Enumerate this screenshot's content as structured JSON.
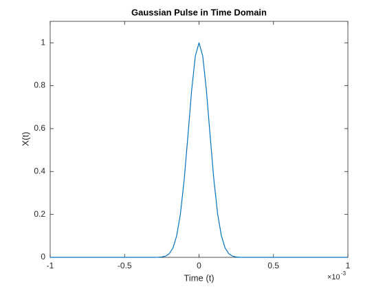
{
  "chart_data": {
    "type": "line",
    "title": "Gaussian Pulse in Time Domain",
    "xlabel": "Time (t)",
    "ylabel": "X(t)",
    "x_multiplier": "×10",
    "x_exponent": "-3",
    "x": [
      -1,
      -0.8,
      -0.6,
      -0.5,
      -0.4,
      -0.375,
      -0.35,
      -0.325,
      -0.3,
      -0.275,
      -0.25,
      -0.225,
      -0.2,
      -0.175,
      -0.15,
      -0.125,
      -0.1,
      -0.075,
      -0.05,
      -0.025,
      0,
      0.025,
      0.05,
      0.075,
      0.1,
      0.125,
      0.15,
      0.175,
      0.2,
      0.225,
      0.25,
      0.275,
      0.3,
      0.325,
      0.35,
      0.375,
      0.4,
      0.5,
      0.6,
      0.8,
      1
    ],
    "series": [
      {
        "name": "X(t)",
        "color": "#0072bd",
        "values": [
          0,
          0,
          0,
          0,
          0,
          0,
          0,
          0,
          0.0001,
          0.00045,
          0.0017,
          0.0057,
          0.0169,
          0.0439,
          0.1007,
          0.203,
          0.36,
          0.563,
          0.775,
          0.938,
          1,
          0.938,
          0.775,
          0.563,
          0.36,
          0.203,
          0.1007,
          0.0439,
          0.0169,
          0.0057,
          0.0017,
          0.00045,
          0.0001,
          0,
          0,
          0,
          0,
          0,
          0,
          0,
          0
        ]
      }
    ],
    "xlim": [
      -1,
      1
    ],
    "xticks": [
      -1,
      -0.5,
      0,
      0.5,
      1
    ],
    "ylim": [
      0,
      1.1
    ],
    "yticks": [
      0,
      0.2,
      0.4,
      0.6,
      0.8,
      1
    ],
    "grid": false
  }
}
